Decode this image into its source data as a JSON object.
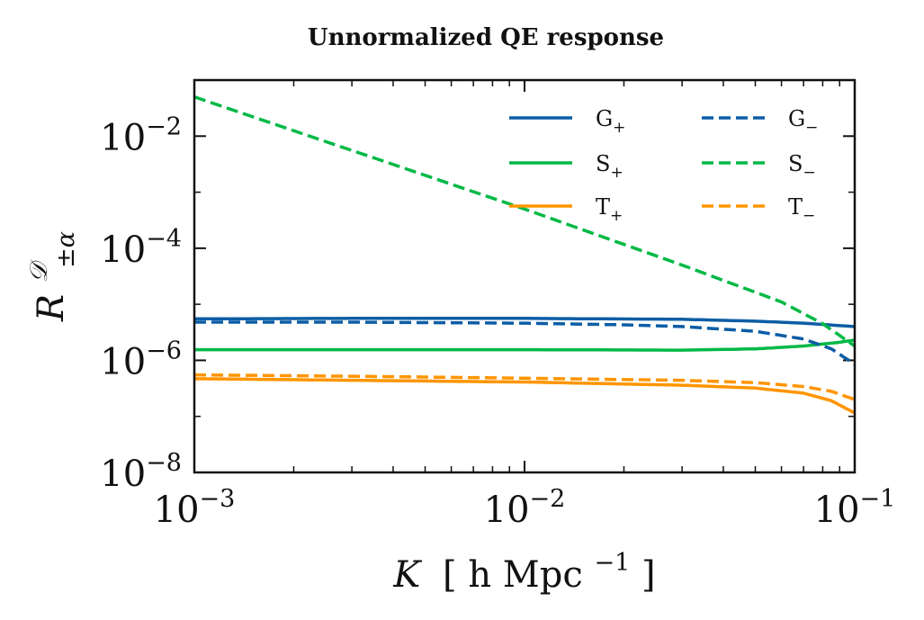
{
  "chart_data": {
    "type": "line",
    "title": "Unnormalized QE response",
    "xlabel": {
      "symbol": "K",
      "unit": "h Mpc",
      "unit_exp": "−1",
      "open": "[",
      "close": "]"
    },
    "ylabel": {
      "symbol": "R",
      "sup": "𝒟",
      "sub": "±α"
    },
    "xscale": "log",
    "yscale": "log",
    "xlim": [
      0.001,
      0.1
    ],
    "ylim": [
      1e-08,
      0.1
    ],
    "xticks": [
      {
        "value": 0.001,
        "base": "10",
        "exp": "−3"
      },
      {
        "value": 0.01,
        "base": "10",
        "exp": "−2"
      },
      {
        "value": 0.1,
        "base": "10",
        "exp": "−1"
      }
    ],
    "yticks": [
      {
        "value": 1e-08,
        "base": "10",
        "exp": "−8"
      },
      {
        "value": 1e-06,
        "base": "10",
        "exp": "−6"
      },
      {
        "value": 0.0001,
        "base": "10",
        "exp": "−4"
      },
      {
        "value": 0.01,
        "base": "10",
        "exp": "−2"
      }
    ],
    "legend_position": "top-right",
    "legend_columns": 2,
    "series": [
      {
        "name": "G",
        "sub": "+",
        "color": "#0C5DA5",
        "style": "solid",
        "x": [
          0.001,
          0.003,
          0.01,
          0.03,
          0.05,
          0.07,
          0.1
        ],
        "y": [
          5.5e-06,
          5.6e-06,
          5.6e-06,
          5.4e-06,
          5e-06,
          4.6e-06,
          4e-06
        ]
      },
      {
        "name": "S",
        "sub": "+",
        "color": "#00B945",
        "style": "solid",
        "x": [
          0.001,
          0.003,
          0.01,
          0.03,
          0.05,
          0.07,
          0.09,
          0.1
        ],
        "y": [
          1.55e-06,
          1.55e-06,
          1.55e-06,
          1.52e-06,
          1.6e-06,
          1.8e-06,
          2.1e-06,
          2.3e-06
        ]
      },
      {
        "name": "T",
        "sub": "+",
        "color": "#FF9500",
        "style": "solid",
        "x": [
          0.001,
          0.003,
          0.01,
          0.03,
          0.05,
          0.07,
          0.085,
          0.1
        ],
        "y": [
          4.7e-07,
          4.4e-07,
          4.1e-07,
          3.6e-07,
          3.2e-07,
          2.6e-07,
          1.9e-07,
          1.15e-07
        ]
      },
      {
        "name": "G",
        "sub": "−",
        "color": "#0C5DA5",
        "style": "dashed",
        "x": [
          0.001,
          0.003,
          0.01,
          0.02,
          0.03,
          0.05,
          0.07,
          0.085,
          0.1
        ],
        "y": [
          4.8e-06,
          4.8e-06,
          4.6e-06,
          4.3e-06,
          4e-06,
          3.3e-06,
          2.4e-06,
          1.6e-06,
          8.5e-07
        ]
      },
      {
        "name": "S",
        "sub": "−",
        "color": "#00B945",
        "style": "dashed",
        "x": [
          0.001,
          0.01,
          0.03,
          0.06,
          0.08,
          0.1
        ],
        "y": [
          0.05,
          0.0005,
          5e-05,
          1.1e-05,
          4.5e-06,
          1.8e-06
        ]
      },
      {
        "name": "T",
        "sub": "−",
        "color": "#FF9500",
        "style": "dashed",
        "x": [
          0.001,
          0.003,
          0.01,
          0.03,
          0.05,
          0.07,
          0.085,
          0.1
        ],
        "y": [
          5.5e-07,
          5.2e-07,
          4.8e-07,
          4.4e-07,
          4e-07,
          3.4e-07,
          2.8e-07,
          2e-07
        ]
      }
    ]
  }
}
